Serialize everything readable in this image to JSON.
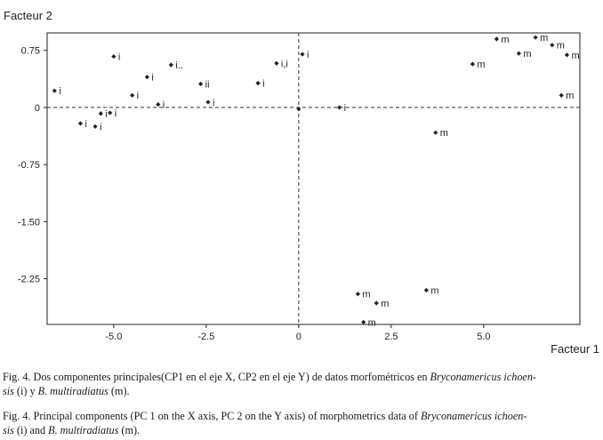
{
  "chart_data": {
    "type": "scatter",
    "title": "",
    "xlabel": "Facteur 1",
    "ylabel": "Facteur 2",
    "xlim": [
      -6.8,
      7.6
    ],
    "ylim": [
      -2.85,
      0.98
    ],
    "xticks": [
      -5.0,
      -2.5,
      0,
      2.5,
      5.0
    ],
    "xtick_labels": [
      "-5.0",
      "-2.5",
      "0",
      "2.5",
      "5.0"
    ],
    "yticks": [
      0.75,
      0,
      -0.75,
      -1.5,
      -2.25
    ],
    "ytick_labels": [
      "0.75",
      "0",
      "-0.75",
      "-1.50",
      "-2.25"
    ],
    "reference_lines": {
      "x": 0,
      "y": 0
    },
    "grid": false,
    "series": [
      {
        "name": "i",
        "points": [
          {
            "x": -6.6,
            "y": 0.22,
            "label": "i"
          },
          {
            "x": -5.9,
            "y": -0.21,
            "label": "i"
          },
          {
            "x": -5.5,
            "y": -0.25,
            "label": "i"
          },
          {
            "x": -5.35,
            "y": -0.08,
            "label": "i"
          },
          {
            "x": -5.1,
            "y": -0.07,
            "label": "i"
          },
          {
            "x": -5.0,
            "y": 0.67,
            "label": "i"
          },
          {
            "x": -4.5,
            "y": 0.16,
            "label": "i"
          },
          {
            "x": -4.1,
            "y": 0.4,
            "label": "i"
          },
          {
            "x": -3.8,
            "y": 0.04,
            "label": "i"
          },
          {
            "x": -3.45,
            "y": 0.56,
            "label": "i.."
          },
          {
            "x": -2.65,
            "y": 0.31,
            "label": "ii"
          },
          {
            "x": -2.45,
            "y": 0.07,
            "label": "i"
          },
          {
            "x": -1.1,
            "y": 0.32,
            "label": "i"
          },
          {
            "x": -0.6,
            "y": 0.58,
            "label": "i,i"
          },
          {
            "x": 0.1,
            "y": 0.7,
            "label": "i"
          },
          {
            "x": 0.0,
            "y": -0.02,
            "label": ""
          },
          {
            "x": 1.1,
            "y": 0.0,
            "label": "i"
          }
        ]
      },
      {
        "name": "m",
        "points": [
          {
            "x": 5.35,
            "y": 0.9,
            "label": "m"
          },
          {
            "x": 6.4,
            "y": 0.92,
            "label": "m"
          },
          {
            "x": 6.85,
            "y": 0.82,
            "label": "m"
          },
          {
            "x": 5.95,
            "y": 0.71,
            "label": "m"
          },
          {
            "x": 7.25,
            "y": 0.69,
            "label": "m"
          },
          {
            "x": 4.7,
            "y": 0.57,
            "label": "m"
          },
          {
            "x": 7.1,
            "y": 0.16,
            "label": "m"
          },
          {
            "x": 3.7,
            "y": -0.33,
            "label": "m"
          },
          {
            "x": 1.6,
            "y": -2.45,
            "label": "m"
          },
          {
            "x": 2.1,
            "y": -2.57,
            "label": "m"
          },
          {
            "x": 3.45,
            "y": -2.4,
            "label": "m"
          },
          {
            "x": 1.75,
            "y": -2.82,
            "label": "m"
          }
        ]
      }
    ]
  },
  "captions": {
    "spanish": {
      "prefix": "Fig. 4. Dos componentes principales(CP1 en el eje X, CP2 en el eje Y) de datos morfométricos en ",
      "species1_a": "Bryconamericus ichoen-",
      "species1_b": "sis",
      "middle": " (i) y ",
      "species2": "B. multiradiatus",
      "suffix": " (m)."
    },
    "english": {
      "prefix": "Fig. 4. Principal components (PC 1 on the X axis, PC 2 on the Y axis) of morphometrics data of ",
      "species1_a": "Bryconamericus ichoen-",
      "species1_b": "sis",
      "middle": " (i) and ",
      "species2": "B. multiradiatus",
      "suffix": " (m)."
    }
  }
}
